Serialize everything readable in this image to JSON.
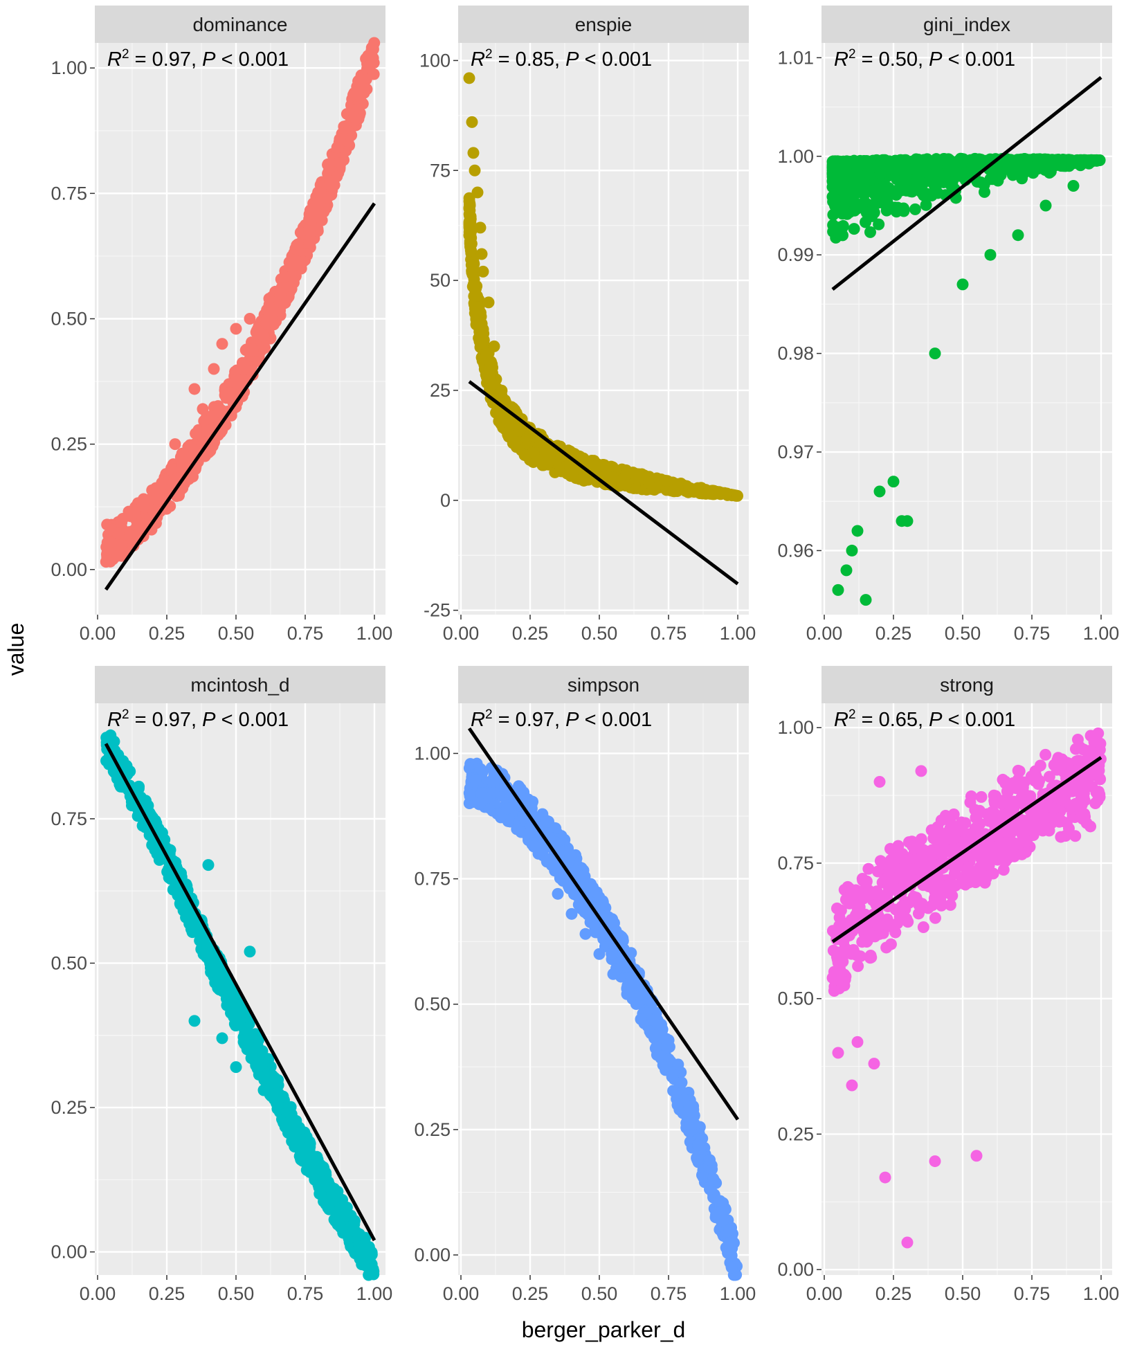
{
  "figure": {
    "xlabel": "berger_parker_d",
    "ylabel": "value"
  },
  "chart_data": [
    {
      "type": "scatter",
      "panel": "dominance",
      "color": "#F8766D",
      "r2": "0.97",
      "p": "0.001",
      "xlim": [
        -0.01,
        1.04
      ],
      "ylim": [
        -0.09,
        1.05
      ],
      "xticks": [
        "0.00",
        "0.25",
        "0.50",
        "0.75",
        "1.00"
      ],
      "yticks": [
        "0.00",
        "0.25",
        "0.50",
        "0.75",
        "1.00"
      ],
      "ytick_values": [
        0,
        0.25,
        0.5,
        0.75,
        1.0
      ],
      "curve": [
        [
          0.03,
          0.01
        ],
        [
          0.1,
          0.03
        ],
        [
          0.2,
          0.08
        ],
        [
          0.3,
          0.15
        ],
        [
          0.4,
          0.23
        ],
        [
          0.5,
          0.32
        ],
        [
          0.6,
          0.43
        ],
        [
          0.7,
          0.55
        ],
        [
          0.8,
          0.68
        ],
        [
          0.9,
          0.83
        ],
        [
          1.0,
          0.99
        ]
      ],
      "band": [
        0.0,
        0.08
      ],
      "outliers": [
        [
          0.28,
          0.25
        ],
        [
          0.38,
          0.32
        ],
        [
          0.45,
          0.45
        ],
        [
          0.5,
          0.48
        ],
        [
          0.55,
          0.5
        ],
        [
          0.62,
          0.54
        ],
        [
          0.66,
          0.55
        ],
        [
          0.35,
          0.36
        ],
        [
          0.42,
          0.4
        ]
      ],
      "fit": [
        [
          0.03,
          -0.04
        ],
        [
          1.0,
          0.73
        ]
      ]
    },
    {
      "type": "scatter",
      "panel": "enspie",
      "color": "#B79F00",
      "r2": "0.85",
      "p": "0.001",
      "xlim": [
        -0.01,
        1.04
      ],
      "ylim": [
        -26,
        104
      ],
      "xticks": [
        "0.00",
        "0.25",
        "0.50",
        "0.75",
        "1.00"
      ],
      "yticks": [
        "-25",
        "0",
        "25",
        "50",
        "75",
        "100"
      ],
      "ytick_values": [
        -25,
        0,
        25,
        50,
        75,
        100
      ],
      "curve": [
        [
          0.03,
          60
        ],
        [
          0.05,
          42
        ],
        [
          0.08,
          30
        ],
        [
          0.12,
          20
        ],
        [
          0.17,
          14
        ],
        [
          0.25,
          9
        ],
        [
          0.35,
          6
        ],
        [
          0.5,
          3.5
        ],
        [
          0.7,
          2.2
        ],
        [
          1.0,
          1
        ]
      ],
      "band": [
        0,
        10
      ],
      "outliers": [
        [
          0.03,
          96
        ],
        [
          0.04,
          86
        ],
        [
          0.045,
          79
        ],
        [
          0.05,
          75
        ],
        [
          0.06,
          70
        ],
        [
          0.07,
          62
        ],
        [
          0.075,
          56
        ],
        [
          0.08,
          52
        ],
        [
          0.1,
          45
        ],
        [
          0.12,
          35
        ]
      ],
      "fit": [
        [
          0.03,
          27
        ],
        [
          1.0,
          -19
        ]
      ]
    },
    {
      "type": "scatter",
      "panel": "gini_index",
      "color": "#00BA38",
      "r2": "0.50",
      "p": "0.001",
      "xlim": [
        -0.01,
        1.04
      ],
      "ylim": [
        0.9535,
        1.0115
      ],
      "xticks": [
        "0.00",
        "0.25",
        "0.50",
        "0.75",
        "1.00"
      ],
      "yticks": [
        "0.96",
        "0.97",
        "0.98",
        "0.99",
        "1.00",
        "1.01"
      ],
      "ytick_values": [
        0.96,
        0.97,
        0.98,
        0.99,
        1.0,
        1.01
      ],
      "curve": [
        [
          0.03,
          0.9995
        ],
        [
          0.3,
          0.9997
        ],
        [
          0.6,
          0.9998
        ],
        [
          1.0,
          0.9996
        ]
      ],
      "band": [
        0.0005,
        0.0005
      ],
      "outliers": [
        [
          0.05,
          0.956
        ],
        [
          0.08,
          0.958
        ],
        [
          0.1,
          0.96
        ],
        [
          0.12,
          0.962
        ],
        [
          0.15,
          0.955
        ],
        [
          0.2,
          0.966
        ],
        [
          0.25,
          0.967
        ],
        [
          0.28,
          0.963
        ],
        [
          0.3,
          0.963
        ],
        [
          0.4,
          0.98
        ],
        [
          0.5,
          0.987
        ],
        [
          0.6,
          0.99
        ],
        [
          0.7,
          0.992
        ],
        [
          0.8,
          0.995
        ],
        [
          0.9,
          0.997
        ]
      ],
      "fit": [
        [
          0.03,
          0.9865
        ],
        [
          1.0,
          1.008
        ]
      ]
    },
    {
      "type": "scatter",
      "panel": "mcintosh_d",
      "color": "#00BFC4",
      "r2": "0.97",
      "p": "0.001",
      "xlim": [
        -0.01,
        1.04
      ],
      "ylim": [
        -0.04,
        0.95
      ],
      "xticks": [
        "0.00",
        "0.25",
        "0.50",
        "0.75",
        "1.00"
      ],
      "yticks": [
        "0.00",
        "0.25",
        "0.50",
        "0.75"
      ],
      "ytick_values": [
        0,
        0.25,
        0.5,
        0.75
      ],
      "curve": [
        [
          0.03,
          0.91
        ],
        [
          0.1,
          0.85
        ],
        [
          0.2,
          0.76
        ],
        [
          0.3,
          0.66
        ],
        [
          0.4,
          0.55
        ],
        [
          0.5,
          0.45
        ],
        [
          0.6,
          0.35
        ],
        [
          0.7,
          0.25
        ],
        [
          0.8,
          0.16
        ],
        [
          0.9,
          0.08
        ],
        [
          1.0,
          0.0
        ]
      ],
      "band": [
        0.06,
        0.0
      ],
      "outliers": [
        [
          0.4,
          0.67
        ],
        [
          0.55,
          0.52
        ],
        [
          0.35,
          0.4
        ],
        [
          0.45,
          0.37
        ],
        [
          0.5,
          0.32
        ],
        [
          0.6,
          0.28
        ],
        [
          0.65,
          0.26
        ]
      ],
      "fit": [
        [
          0.03,
          0.88
        ],
        [
          1.0,
          0.02
        ]
      ]
    },
    {
      "type": "scatter",
      "panel": "simpson",
      "color": "#619CFF",
      "r2": "0.97",
      "p": "0.001",
      "xlim": [
        -0.01,
        1.04
      ],
      "ylim": [
        -0.04,
        1.1
      ],
      "xticks": [
        "0.00",
        "0.25",
        "0.50",
        "0.75",
        "1.00"
      ],
      "yticks": [
        "0.00",
        "0.25",
        "0.50",
        "0.75",
        "1.00"
      ],
      "ytick_values": [
        0,
        0.25,
        0.5,
        0.75,
        1.0
      ],
      "curve": [
        [
          0.03,
          0.99
        ],
        [
          0.1,
          0.98
        ],
        [
          0.2,
          0.94
        ],
        [
          0.3,
          0.88
        ],
        [
          0.4,
          0.81
        ],
        [
          0.5,
          0.72
        ],
        [
          0.6,
          0.62
        ],
        [
          0.7,
          0.5
        ],
        [
          0.8,
          0.36
        ],
        [
          0.9,
          0.2
        ],
        [
          1.0,
          0.01
        ]
      ],
      "band": [
        0.09,
        0.0
      ],
      "outliers": [
        [
          0.28,
          0.8
        ],
        [
          0.35,
          0.72
        ],
        [
          0.4,
          0.68
        ],
        [
          0.45,
          0.64
        ],
        [
          0.5,
          0.6
        ],
        [
          0.55,
          0.56
        ],
        [
          0.6,
          0.52
        ],
        [
          0.65,
          0.47
        ]
      ],
      "fit": [
        [
          0.03,
          1.05
        ],
        [
          1.0,
          0.27
        ]
      ]
    },
    {
      "type": "scatter",
      "panel": "strong",
      "color": "#F564E3",
      "r2": "0.65",
      "p": "0.001",
      "xlim": [
        -0.01,
        1.04
      ],
      "ylim": [
        -0.01,
        1.045
      ],
      "xticks": [
        "0.00",
        "0.25",
        "0.50",
        "0.75",
        "1.00"
      ],
      "yticks": [
        "0.00",
        "0.25",
        "0.50",
        "0.75",
        "1.00"
      ],
      "ytick_values": [
        0,
        0.25,
        0.5,
        0.75,
        1.0
      ],
      "curve": [
        [
          0.03,
          0.6
        ],
        [
          0.1,
          0.66
        ],
        [
          0.2,
          0.71
        ],
        [
          0.3,
          0.74
        ],
        [
          0.4,
          0.77
        ],
        [
          0.5,
          0.8
        ],
        [
          0.6,
          0.83
        ],
        [
          0.7,
          0.86
        ],
        [
          0.8,
          0.89
        ],
        [
          0.9,
          0.92
        ],
        [
          1.0,
          0.95
        ]
      ],
      "band": [
        0.13,
        0.07
      ],
      "outliers": [
        [
          0.22,
          0.17
        ],
        [
          0.3,
          0.05
        ],
        [
          0.4,
          0.2
        ],
        [
          0.55,
          0.21
        ],
        [
          0.1,
          0.34
        ],
        [
          0.05,
          0.4
        ],
        [
          0.12,
          0.42
        ],
        [
          0.18,
          0.38
        ],
        [
          0.2,
          0.9
        ],
        [
          0.35,
          0.92
        ]
      ],
      "fit": [
        [
          0.03,
          0.605
        ],
        [
          1.0,
          0.945
        ]
      ]
    }
  ]
}
